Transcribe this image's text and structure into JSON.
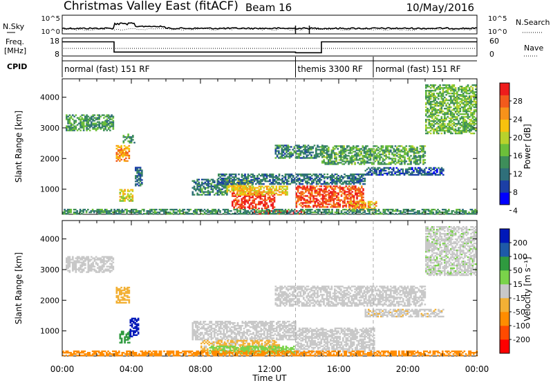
{
  "header": {
    "station": "Christmas Valley East (fitACF)",
    "beam": "Beam 16",
    "date": "10/May/2016"
  },
  "summary_panels": {
    "nsky_label": "N.Sky",
    "nsky_ticks": [
      "10^5",
      "10^0"
    ],
    "nsearch_label": "N.Search",
    "nsearch_ticks": [
      "10^5",
      "10^0"
    ],
    "freq_label_1": "Freq.",
    "freq_label_2": "[MHz]",
    "freq_ticks": [
      "18",
      "8"
    ],
    "nave_label": "Nave",
    "nave_ticks": [
      "60",
      "0"
    ],
    "cpid_label": "CPID",
    "cpid_segments": [
      {
        "name": "normal (fast) 151 RF",
        "start": 0,
        "end": 13.5
      },
      {
        "name": "themis 3300 RF",
        "start": 13.5,
        "end": 18
      },
      {
        "name": "normal (fast) 151 RF",
        "start": 18,
        "end": 24
      }
    ]
  },
  "colorbars": {
    "power": {
      "label": "Power [dB]",
      "ticks": [
        "28",
        "24",
        "20",
        "16",
        "12",
        "8",
        "4"
      ],
      "colors": [
        "#0000ff",
        "#1c3fa6",
        "#2f6f7a",
        "#3e8e5a",
        "#6cbf3a",
        "#b8d22c",
        "#f7c20e",
        "#f7921a",
        "#f25a1c",
        "#ee1c1c"
      ]
    },
    "velocity": {
      "label": "Velocity [m s⁻¹]",
      "ticks": [
        "200",
        "100",
        "50",
        "15",
        "-15",
        "-50",
        "-100",
        "-200"
      ],
      "colors": [
        "#ff0000",
        "#ff4a00",
        "#ff8c00",
        "#f2b035",
        "#c8c8c8",
        "#7ad34a",
        "#2f9a3f",
        "#1e5aa8",
        "#0018b8"
      ]
    }
  },
  "chart_data": {
    "type": "heatmap",
    "xlabel": "Time UT",
    "ylabel": "Slant Range [km]",
    "x_ticks": [
      "00:00",
      "04:00",
      "08:00",
      "12:00",
      "16:00",
      "20:00",
      "00:00"
    ],
    "xlim_hours": [
      0,
      24
    ],
    "y_ticks": [
      "1000",
      "2000",
      "3000",
      "4000"
    ],
    "ylim_km": [
      180,
      4600
    ],
    "scan_mode_markers_hours": [
      13.5,
      18
    ],
    "freq_mhz": [
      {
        "start": 0,
        "end": 3,
        "value": 15.9
      },
      {
        "start": 3,
        "end": 13.5,
        "value": 10.2
      },
      {
        "start": 13.5,
        "end": 15,
        "value": 9.8
      },
      {
        "start": 15,
        "end": 24,
        "value": 15.9
      }
    ],
    "power_clusters": [
      {
        "t0": 0.2,
        "t1": 2.9,
        "r0": 2900,
        "r1": 3400,
        "p": 11
      },
      {
        "t0": 3.1,
        "t1": 3.9,
        "r0": 1900,
        "r1": 2400,
        "p": 22
      },
      {
        "t0": 3.3,
        "t1": 4.1,
        "r0": 600,
        "r1": 1000,
        "p": 18
      },
      {
        "t0": 3.5,
        "t1": 4.2,
        "r0": 2500,
        "r1": 2800,
        "p": 10
      },
      {
        "t0": 4.2,
        "t1": 4.6,
        "r0": 1100,
        "r1": 1700,
        "p": 7
      },
      {
        "t0": 7.5,
        "t1": 9.5,
        "r0": 800,
        "r1": 1300,
        "p": 9
      },
      {
        "t0": 9.5,
        "t1": 11.0,
        "r0": 900,
        "r1": 1300,
        "p": 18
      },
      {
        "t0": 9.8,
        "t1": 12.3,
        "r0": 350,
        "r1": 850,
        "p": 27
      },
      {
        "t0": 10.0,
        "t1": 13.0,
        "r0": 800,
        "r1": 1100,
        "p": 20
      },
      {
        "t0": 13.5,
        "t1": 17.4,
        "r0": 400,
        "r1": 1100,
        "p": 26
      },
      {
        "t0": 9.0,
        "t1": 17.5,
        "r0": 1150,
        "r1": 1500,
        "p": 8
      },
      {
        "t0": 11.0,
        "t1": 14.0,
        "r0": 180,
        "r1": 300,
        "p": 29
      },
      {
        "t0": 16.5,
        "t1": 18.2,
        "r0": 300,
        "r1": 600,
        "p": 21
      },
      {
        "t0": 12.3,
        "t1": 15.0,
        "r0": 2000,
        "r1": 2450,
        "p": 9
      },
      {
        "t0": 15.0,
        "t1": 21.0,
        "r0": 1800,
        "r1": 2400,
        "p": 12
      },
      {
        "t0": 17.5,
        "t1": 22.0,
        "r0": 1450,
        "r1": 1700,
        "p": 6
      },
      {
        "t0": 21.0,
        "t1": 23.9,
        "r0": 2800,
        "r1": 4400,
        "p": 13
      },
      {
        "t0": 0.0,
        "t1": 24.0,
        "r0": 180,
        "r1": 350,
        "p": 10
      }
    ],
    "velocity_clusters": [
      {
        "t0": 0.2,
        "t1": 2.9,
        "r0": 2900,
        "r1": 3400,
        "v": 5
      },
      {
        "t0": 3.1,
        "t1": 3.9,
        "r0": 1900,
        "r1": 2400,
        "v": -40
      },
      {
        "t0": 3.3,
        "t1": 3.9,
        "r0": 600,
        "r1": 1000,
        "v": 60
      },
      {
        "t0": 3.9,
        "t1": 4.4,
        "r0": 800,
        "r1": 1400,
        "v": 210
      },
      {
        "t0": 7.5,
        "t1": 13.5,
        "r0": 700,
        "r1": 1300,
        "v": 3
      },
      {
        "t0": 8.0,
        "t1": 12.5,
        "r0": 300,
        "r1": 700,
        "v": -20
      },
      {
        "t0": 8.5,
        "t1": 13.5,
        "r0": 250,
        "r1": 500,
        "v": 30
      },
      {
        "t0": 13.5,
        "t1": 18.0,
        "r0": 300,
        "r1": 1100,
        "v": 4
      },
      {
        "t0": 12.3,
        "t1": 21.0,
        "r0": 1800,
        "r1": 2450,
        "v": 2
      },
      {
        "t0": 17.5,
        "t1": 22.0,
        "r0": 1450,
        "r1": 1700,
        "v": -8
      },
      {
        "t0": 21.0,
        "t1": 23.9,
        "r0": 2800,
        "r1": 4400,
        "v": 8
      },
      {
        "t0": 0.0,
        "t1": 24.0,
        "r0": 180,
        "r1": 330,
        "v": -60
      }
    ]
  }
}
